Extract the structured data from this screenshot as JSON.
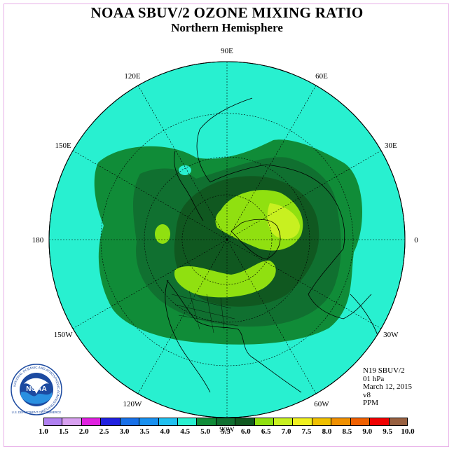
{
  "title": "NOAA SBUV/2 OZONE MIXING RATIO",
  "subtitle": "Northern Hemisphere",
  "longitude_labels": [
    {
      "text": "90E",
      "lon": 90
    },
    {
      "text": "60E",
      "lon": 60
    },
    {
      "text": "30E",
      "lon": 30
    },
    {
      "text": "0",
      "lon": 0
    },
    {
      "text": "30W",
      "lon": -30
    },
    {
      "text": "60W",
      "lon": -60
    },
    {
      "text": "90W",
      "lon": -90
    },
    {
      "text": "120W",
      "lon": -120
    },
    {
      "text": "150W",
      "lon": -150
    },
    {
      "text": "180",
      "lon": 180
    },
    {
      "text": "150E",
      "lon": 150
    },
    {
      "text": "120E",
      "lon": 120
    }
  ],
  "info": {
    "instrument": "N19 SBUV/2",
    "level": "01 hPa",
    "date": "March 12, 2015",
    "version": "v8",
    "units": "PPM"
  },
  "colorbar": {
    "tick_labels": [
      "1.0",
      "1.5",
      "2.0",
      "2.5",
      "3.0",
      "3.5",
      "4.0",
      "4.5",
      "5.0",
      "5.5",
      "6.0",
      "6.5",
      "7.0",
      "7.5",
      "8.0",
      "8.5",
      "9.0",
      "9.5",
      "10.0"
    ],
    "colors": [
      "#b080f0",
      "#d8a0f0",
      "#e020e0",
      "#2020e0",
      "#1870e8",
      "#1890f0",
      "#20c0f0",
      "#28f0d0",
      "#108c38",
      "#107030",
      "#105820",
      "#90e010",
      "#c8f020",
      "#f0f020",
      "#f0c000",
      "#f09000",
      "#f06000",
      "#f00000",
      "#986040"
    ]
  },
  "map": {
    "projection": "north polar stereographic",
    "background_class_color": "#28f0d0",
    "level_colors": {
      "5.0-5.5": "#108c38",
      "5.5-6.0": "#107030",
      "6.0-6.5": "#105820",
      "6.5-7.0": "#90e010",
      "7.0-7.5": "#c8f020"
    }
  },
  "logo": {
    "text_ring": "NATIONAL OCEANIC AND ATMOSPHERIC ADMINISTRATION",
    "text_bottom": "U.S. DEPARTMENT OF COMMERCE",
    "center": "NOAA"
  }
}
